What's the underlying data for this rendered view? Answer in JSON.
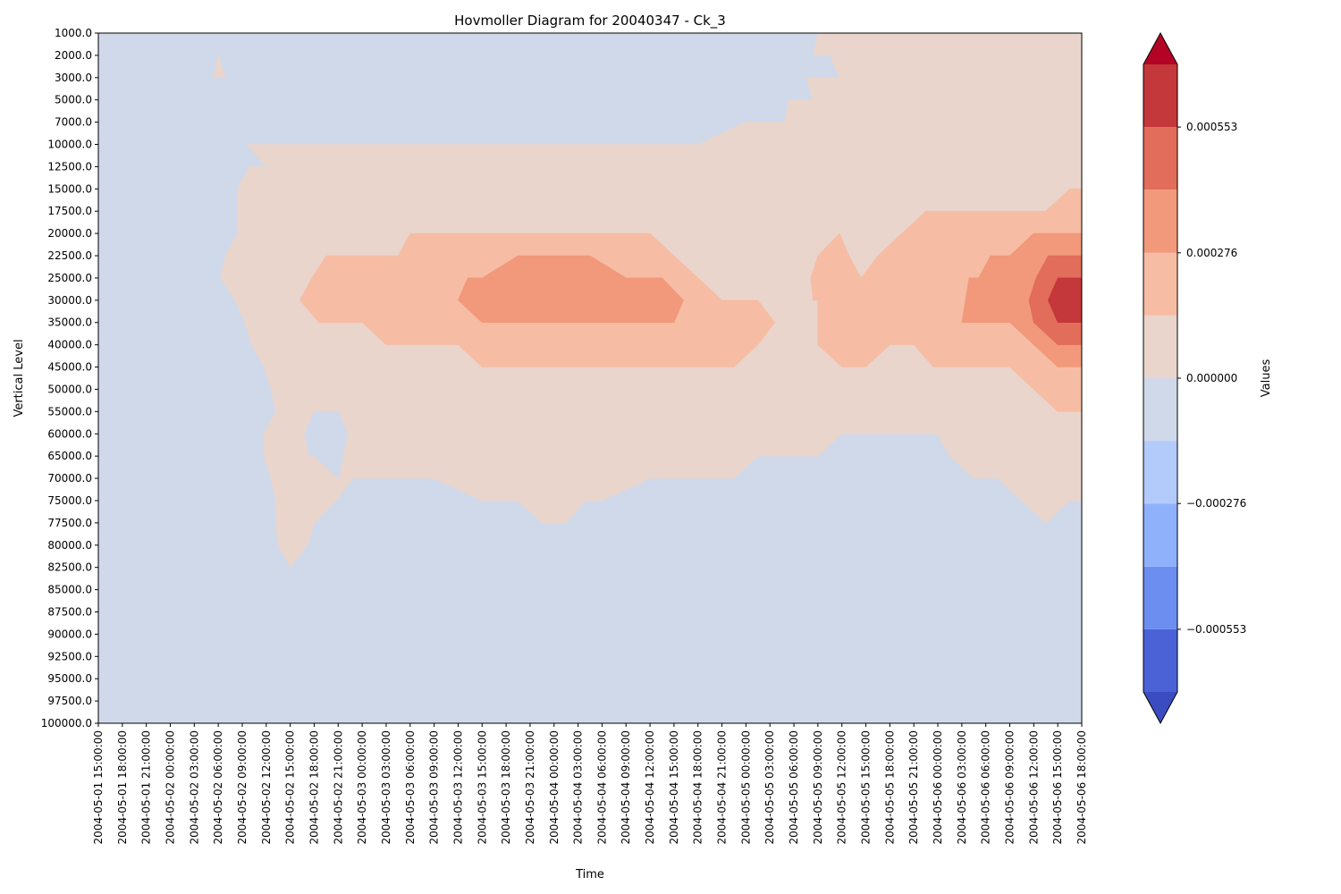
{
  "chart_data": {
    "type": "heatmap",
    "subtype": "filled-contour",
    "title": "Hovmoller Diagram for 20040347 - Ck_3",
    "xlabel": "Time",
    "ylabel": "Vertical Level",
    "x_ticks": [
      "2004-05-01 15:00:00",
      "2004-05-01 18:00:00",
      "2004-05-01 21:00:00",
      "2004-05-02 00:00:00",
      "2004-05-02 03:00:00",
      "2004-05-02 06:00:00",
      "2004-05-02 09:00:00",
      "2004-05-02 12:00:00",
      "2004-05-02 15:00:00",
      "2004-05-02 18:00:00",
      "2004-05-02 21:00:00",
      "2004-05-03 00:00:00",
      "2004-05-03 03:00:00",
      "2004-05-03 06:00:00",
      "2004-05-03 09:00:00",
      "2004-05-03 12:00:00",
      "2004-05-03 15:00:00",
      "2004-05-03 18:00:00",
      "2004-05-03 21:00:00",
      "2004-05-04 00:00:00",
      "2004-05-04 03:00:00",
      "2004-05-04 06:00:00",
      "2004-05-04 09:00:00",
      "2004-05-04 12:00:00",
      "2004-05-04 15:00:00",
      "2004-05-04 18:00:00",
      "2004-05-04 21:00:00",
      "2004-05-05 00:00:00",
      "2004-05-05 03:00:00",
      "2004-05-05 06:00:00",
      "2004-05-05 09:00:00",
      "2004-05-05 12:00:00",
      "2004-05-05 15:00:00",
      "2004-05-05 18:00:00",
      "2004-05-05 21:00:00",
      "2004-05-06 00:00:00",
      "2004-05-06 03:00:00",
      "2004-05-06 06:00:00",
      "2004-05-06 09:00:00",
      "2004-05-06 12:00:00",
      "2004-05-06 15:00:00",
      "2004-05-06 18:00:00"
    ],
    "y_ticks": [
      "1000.0",
      "2000.0",
      "3000.0",
      "5000.0",
      "7000.0",
      "10000.0",
      "12500.0",
      "15000.0",
      "17500.0",
      "20000.0",
      "22500.0",
      "25000.0",
      "30000.0",
      "35000.0",
      "40000.0",
      "45000.0",
      "50000.0",
      "55000.0",
      "60000.0",
      "65000.0",
      "70000.0",
      "75000.0",
      "77500.0",
      "80000.0",
      "82500.0",
      "85000.0",
      "87500.0",
      "90000.0",
      "92500.0",
      "95000.0",
      "97500.0",
      "100000.0"
    ],
    "y_inverted": true,
    "colormap": "coolwarm",
    "colorbar": {
      "label": "Values",
      "tick_labels": [
        "−0.000553",
        "−0.000276",
        "0.000000",
        "0.000276",
        "0.000553"
      ],
      "tick_values": [
        -0.000553,
        -0.000276,
        0.0,
        0.000276,
        0.000553
      ],
      "levels": [
        -0.000691,
        -0.000553,
        -0.000415,
        -0.000276,
        -0.000138,
        0.0,
        0.000138,
        0.000276,
        0.000415,
        0.000553,
        0.000691
      ],
      "colors": [
        "#4a62d6",
        "#6b8ef0",
        "#8fb0fb",
        "#b2cbfb",
        "#cfd9ea",
        "#e9d5cc",
        "#f6bda4",
        "#f2987b",
        "#e26d5a",
        "#c4373a"
      ],
      "extend_under_color": "#3b4cc0",
      "extend_over_color": "#b40426"
    },
    "regions": [
      {
        "band": "0.000000 to 0.000138",
        "color": "#e9d5cc",
        "description": "main positive plume",
        "outline": [
          [
            30.0,
            "1000.0"
          ],
          [
            29.8,
            "2000.0"
          ],
          [
            30.5,
            "2000.0"
          ],
          [
            30.9,
            "3000.0"
          ],
          [
            29.5,
            "3000.0"
          ],
          [
            29.8,
            "5000.0"
          ],
          [
            28.8,
            "5000.0"
          ],
          [
            28.6,
            "7000.0"
          ],
          [
            27.0,
            "7000.0"
          ],
          [
            25.0,
            "10000.0"
          ],
          [
            22.5,
            "10000.0"
          ],
          [
            20.0,
            "10000.0"
          ],
          [
            18.5,
            "10000.0"
          ],
          [
            16.0,
            "10000.0"
          ],
          [
            14.5,
            "10000.0"
          ],
          [
            12.0,
            "10000.0"
          ],
          [
            10.0,
            "10000.0"
          ],
          [
            8.5,
            "10000.0"
          ],
          [
            6.5,
            "10000.0"
          ],
          [
            6.2,
            "10000.0"
          ],
          [
            7.0,
            "12500.0"
          ],
          [
            6.3,
            "12500.0"
          ],
          [
            5.8,
            "15000.0"
          ],
          [
            5.8,
            "17500.0"
          ],
          [
            5.8,
            "20000.0"
          ],
          [
            5.3,
            "22500.0"
          ],
          [
            5.1,
            "25000.0"
          ],
          [
            5.7,
            "30000.0"
          ],
          [
            6.1,
            "35000.0"
          ],
          [
            6.4,
            "40000.0"
          ],
          [
            6.9,
            "45000.0"
          ],
          [
            7.2,
            "50000.0"
          ],
          [
            7.4,
            "55000.0"
          ],
          [
            6.9,
            "60000.0"
          ],
          [
            6.9,
            "65000.0"
          ],
          [
            7.2,
            "70000.0"
          ],
          [
            7.4,
            "75000.0"
          ],
          [
            7.4,
            "77500.0"
          ],
          [
            7.5,
            "80000.0"
          ],
          [
            8.0,
            "82500.0"
          ],
          [
            8.7,
            "80000.0"
          ],
          [
            9.0,
            "77500.0"
          ],
          [
            9.9,
            "75000.0"
          ],
          [
            10.6,
            "70000.0"
          ],
          [
            12.0,
            "70000.0"
          ],
          [
            14.0,
            "70000.0"
          ],
          [
            16.0,
            "75000.0"
          ],
          [
            17.5,
            "75000.0"
          ],
          [
            18.5,
            "77500.0"
          ],
          [
            19.5,
            "77500.0"
          ],
          [
            20.3,
            "75000.0"
          ],
          [
            21.0,
            "75000.0"
          ],
          [
            23.0,
            "70000.0"
          ],
          [
            25.0,
            "70000.0"
          ],
          [
            26.5,
            "70000.0"
          ],
          [
            27.5,
            "65000.0"
          ],
          [
            28.5,
            "65000.0"
          ],
          [
            30.0,
            "65000.0"
          ],
          [
            31.0,
            "60000.0"
          ],
          [
            32.5,
            "60000.0"
          ],
          [
            34.0,
            "60000.0"
          ],
          [
            35.0,
            "60000.0"
          ],
          [
            35.5,
            "65000.0"
          ],
          [
            36.5,
            "70000.0"
          ],
          [
            37.5,
            "70000.0"
          ],
          [
            38.5,
            "75000.0"
          ],
          [
            39.5,
            "77500.0"
          ],
          [
            40.5,
            "75000.0"
          ],
          [
            41.0,
            "75000.0"
          ],
          [
            41.0,
            "1000.0"
          ]
        ]
      },
      {
        "band": "-0.000138 to 0.000000",
        "color": "#cfd9ea",
        "description": "inner negative pocket",
        "outline": [
          [
            8.6,
            "60000.0"
          ],
          [
            9.0,
            "55000.0"
          ],
          [
            10.0,
            "55000.0"
          ],
          [
            10.4,
            "60000.0"
          ],
          [
            10.0,
            "70000.0"
          ],
          [
            9.0,
            "65000.0"
          ],
          [
            8.8,
            "65000.0"
          ]
        ]
      },
      {
        "band": "0.000138 to 0.000276",
        "color": "#f6bda4",
        "description": "mid-level positive band",
        "outline": [
          [
            8.4,
            "30000.0"
          ],
          [
            8.9,
            "25000.0"
          ],
          [
            9.5,
            "22500.0"
          ],
          [
            10.3,
            "22500.0"
          ],
          [
            11.5,
            "22500.0"
          ],
          [
            12.5,
            "22500.0"
          ],
          [
            13.0,
            "20000.0"
          ],
          [
            13.5,
            "20000.0"
          ],
          [
            14.5,
            "20000.0"
          ],
          [
            15.5,
            "20000.0"
          ],
          [
            16.2,
            "20000.0"
          ],
          [
            17.5,
            "20000.0"
          ],
          [
            18.5,
            "20000.0"
          ],
          [
            19.5,
            "20000.0"
          ],
          [
            21.0,
            "20000.0"
          ],
          [
            22.0,
            "20000.0"
          ],
          [
            23.0,
            "20000.0"
          ],
          [
            24.0,
            "22500.0"
          ],
          [
            25.0,
            "25000.0"
          ],
          [
            26.0,
            "30000.0"
          ],
          [
            27.0,
            "30000.0"
          ],
          [
            27.5,
            "30000.0"
          ],
          [
            28.2,
            "35000.0"
          ],
          [
            27.5,
            "40000.0"
          ],
          [
            26.5,
            "45000.0"
          ],
          [
            25.0,
            "45000.0"
          ],
          [
            23.5,
            "45000.0"
          ],
          [
            22.0,
            "45000.0"
          ],
          [
            20.5,
            "45000.0"
          ],
          [
            19.0,
            "45000.0"
          ],
          [
            17.5,
            "45000.0"
          ],
          [
            16.0,
            "45000.0"
          ],
          [
            15.0,
            "40000.0"
          ],
          [
            14.0,
            "40000.0"
          ],
          [
            12.0,
            "40000.0"
          ],
          [
            11.0,
            "35000.0"
          ],
          [
            9.7,
            "35000.0"
          ],
          [
            9.2,
            "35000.0"
          ]
        ]
      },
      {
        "band": "0.000138 to 0.000276",
        "color": "#f6bda4",
        "description": "eastern positive band",
        "outline": [
          [
            29.7,
            "25000.0"
          ],
          [
            30.0,
            "22500.0"
          ],
          [
            30.9,
            "20000.0"
          ],
          [
            31.3,
            "22500.0"
          ],
          [
            31.8,
            "25000.0"
          ],
          [
            32.5,
            "22500.0"
          ],
          [
            33.5,
            "20000.0"
          ],
          [
            34.5,
            "17500.0"
          ],
          [
            35.5,
            "17500.0"
          ],
          [
            36.5,
            "17500.0"
          ],
          [
            37.2,
            "17500.0"
          ],
          [
            38.0,
            "17500.0"
          ],
          [
            39.5,
            "17500.0"
          ],
          [
            40.5,
            "15000.0"
          ],
          [
            41.0,
            "15000.0"
          ],
          [
            41.0,
            "55000.0"
          ],
          [
            40.0,
            "55000.0"
          ],
          [
            39.0,
            "50000.0"
          ],
          [
            38.0,
            "45000.0"
          ],
          [
            37.0,
            "45000.0"
          ],
          [
            35.5,
            "45000.0"
          ],
          [
            34.8,
            "45000.0"
          ],
          [
            34.0,
            "40000.0"
          ],
          [
            33.0,
            "40000.0"
          ],
          [
            32.0,
            "45000.0"
          ],
          [
            31.0,
            "45000.0"
          ],
          [
            30.0,
            "40000.0"
          ],
          [
            30.0,
            "30000.0"
          ],
          [
            29.8,
            "30000.0"
          ]
        ]
      },
      {
        "band": "0.000276 to 0.000415",
        "color": "#f2987b",
        "description": "central positive core",
        "outline": [
          [
            15.0,
            "30000.0"
          ],
          [
            15.4,
            "25000.0"
          ],
          [
            16.0,
            "25000.0"
          ],
          [
            17.5,
            "22500.0"
          ],
          [
            19.0,
            "22500.0"
          ],
          [
            20.5,
            "22500.0"
          ],
          [
            22.0,
            "25000.0"
          ],
          [
            23.5,
            "25000.0"
          ],
          [
            24.4,
            "30000.0"
          ],
          [
            24.0,
            "35000.0"
          ],
          [
            23.0,
            "35000.0"
          ],
          [
            21.5,
            "35000.0"
          ],
          [
            20.5,
            "35000.0"
          ],
          [
            19.0,
            "35000.0"
          ],
          [
            17.5,
            "35000.0"
          ],
          [
            16.0,
            "35000.0"
          ]
        ]
      },
      {
        "band": "0.000276 to 0.000415",
        "color": "#f2987b",
        "description": "eastern positive core",
        "outline": [
          [
            36.0,
            "35000.0"
          ],
          [
            36.3,
            "25000.0"
          ],
          [
            36.7,
            "25000.0"
          ],
          [
            37.2,
            "22500.0"
          ],
          [
            38.0,
            "22500.0"
          ],
          [
            39.0,
            "20000.0"
          ],
          [
            40.0,
            "20000.0"
          ],
          [
            41.0,
            "20000.0"
          ],
          [
            41.0,
            "45000.0"
          ],
          [
            40.5,
            "45000.0"
          ],
          [
            40.0,
            "45000.0"
          ],
          [
            39.0,
            "40000.0"
          ],
          [
            38.0,
            "35000.0"
          ],
          [
            37.0,
            "35000.0"
          ]
        ]
      },
      {
        "band": "0.000415 to 0.000553",
        "color": "#e26d5a",
        "outline": [
          [
            38.8,
            "30000.0"
          ],
          [
            39.1,
            "25000.0"
          ],
          [
            39.6,
            "22500.0"
          ],
          [
            40.5,
            "22500.0"
          ],
          [
            41.0,
            "22500.0"
          ],
          [
            41.0,
            "40000.0"
          ],
          [
            40.0,
            "40000.0"
          ],
          [
            39.0,
            "35000.0"
          ]
        ]
      },
      {
        "band": "0.000553 to 0.000691",
        "color": "#c4373a",
        "outline": [
          [
            39.6,
            "30000.0"
          ],
          [
            40.0,
            "25000.0"
          ],
          [
            40.5,
            "25000.0"
          ],
          [
            41.0,
            "25000.0"
          ],
          [
            41.0,
            "35000.0"
          ],
          [
            40.5,
            "35000.0"
          ],
          [
            40.0,
            "35000.0"
          ]
        ]
      },
      {
        "band": "0.000000 to 0.000138",
        "color": "#e9d5cc",
        "description": "small isolated spot",
        "outline": [
          [
            5.0,
            "2000.0"
          ],
          [
            5.3,
            "3000.0"
          ],
          [
            5.0,
            "3000.0"
          ],
          [
            4.8,
            "3000.0"
          ]
        ]
      }
    ],
    "grid": false,
    "legend": "none"
  }
}
